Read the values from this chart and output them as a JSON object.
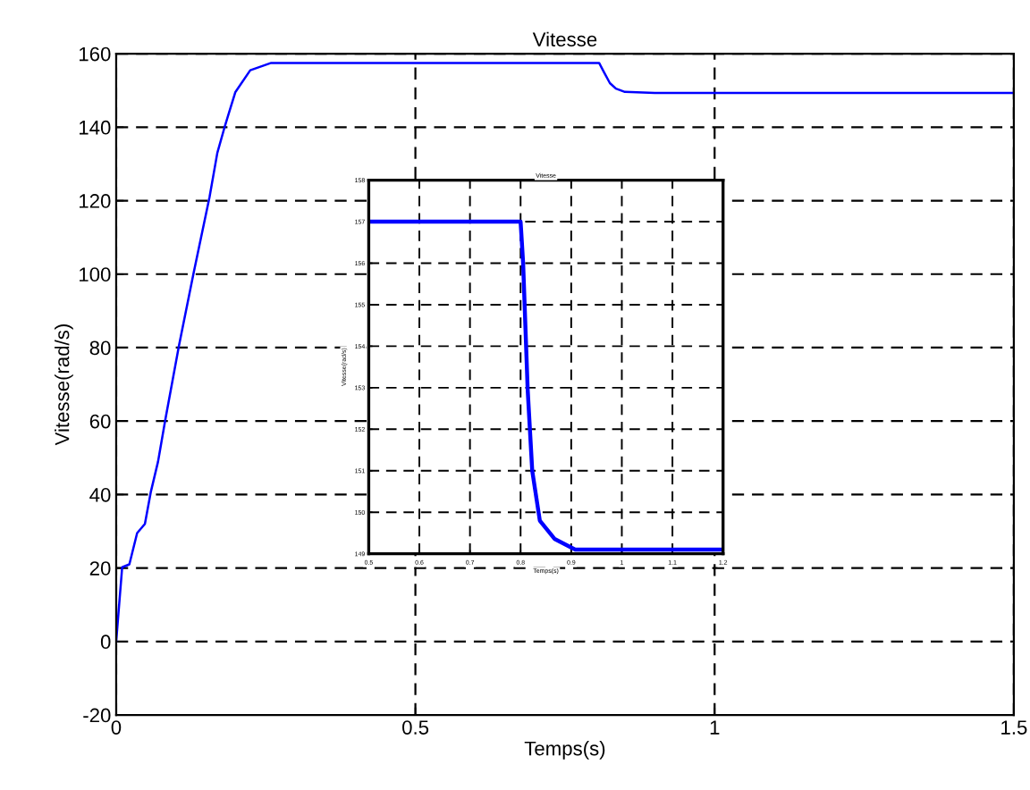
{
  "chart_data": [
    {
      "type": "line",
      "title": "Vitesse",
      "xlabel": "Temps(s)",
      "ylabel": "Vitesse(rad/s)",
      "xlim": [
        0,
        1.5
      ],
      "ylim": [
        -20,
        160
      ],
      "xticks": [
        0,
        0.5,
        1,
        1.5
      ],
      "yticks": [
        -20,
        0,
        20,
        40,
        60,
        80,
        100,
        120,
        140,
        160
      ],
      "grid": true,
      "series": [
        {
          "color": "#0000ff",
          "x": [
            0,
            0.01,
            0.022,
            0.035,
            0.048,
            0.058,
            0.07,
            0.082,
            0.105,
            0.129,
            0.156,
            0.169,
            0.182,
            0.199,
            0.224,
            0.259,
            0.807,
            0.815,
            0.825,
            0.835,
            0.85,
            0.9,
            1.5
          ],
          "values": [
            0,
            20.2,
            21,
            29.5,
            32,
            40.8,
            49,
            60.3,
            80.6,
            100,
            121,
            133,
            140.5,
            149.5,
            155.5,
            157.5,
            157.5,
            155,
            152,
            150.5,
            149.6,
            149.3,
            149.3
          ]
        }
      ]
    },
    {
      "type": "line",
      "title": "Vitesse",
      "xlabel": "Temps(s)",
      "ylabel": "Vitesse(rad/s)",
      "xlim": [
        0.5,
        1.2
      ],
      "ylim": [
        149,
        158
      ],
      "xticks": [
        0.5,
        0.6,
        0.7,
        0.8,
        0.9,
        1,
        1.1,
        1.2
      ],
      "yticks": [
        149,
        150,
        151,
        152,
        153,
        154,
        155,
        156,
        157,
        158
      ],
      "grid": true,
      "series": [
        {
          "color": "#0000ff",
          "x": [
            0.5,
            0.8,
            0.805,
            0.814,
            0.823,
            0.838,
            0.867,
            0.908,
            1.2
          ],
          "values": [
            157,
            157,
            156,
            152.95,
            151,
            149.8,
            149.36,
            149.1,
            149.1
          ]
        }
      ]
    }
  ]
}
